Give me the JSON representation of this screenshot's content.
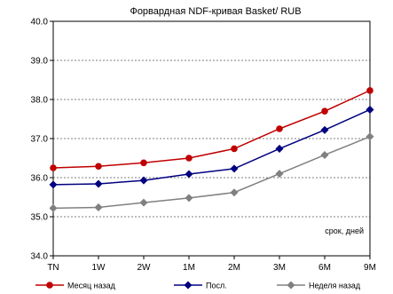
{
  "chart_data": {
    "type": "line",
    "title": "Форвардная NDF-кривая Basket/ RUB",
    "xlabel": "",
    "ylabel": "",
    "annotation": "срок, дней",
    "categories": [
      "TN",
      "1W",
      "2W",
      "1M",
      "2M",
      "3M",
      "6M",
      "9M"
    ],
    "ylim": [
      34.0,
      40.0
    ],
    "yticks": [
      "34.0",
      "35.0",
      "36.0",
      "37.0",
      "38.0",
      "39.0",
      "40.0"
    ],
    "grid": "horizontal dashed",
    "legend_position": "bottom",
    "series": [
      {
        "name": "Месяц назад",
        "color": "#c00000",
        "marker": "circle",
        "values": [
          36.25,
          36.29,
          36.38,
          36.5,
          36.74,
          37.25,
          37.7,
          38.23
        ]
      },
      {
        "name": "Посл.",
        "color": "#000080",
        "marker": "diamond",
        "values": [
          35.82,
          35.84,
          35.93,
          36.09,
          36.23,
          36.74,
          37.22,
          37.74
        ]
      },
      {
        "name": "Неделя назад",
        "color": "#808080",
        "marker": "diamond",
        "values": [
          35.22,
          35.24,
          35.36,
          35.48,
          35.62,
          36.1,
          36.58,
          37.05
        ]
      }
    ]
  }
}
